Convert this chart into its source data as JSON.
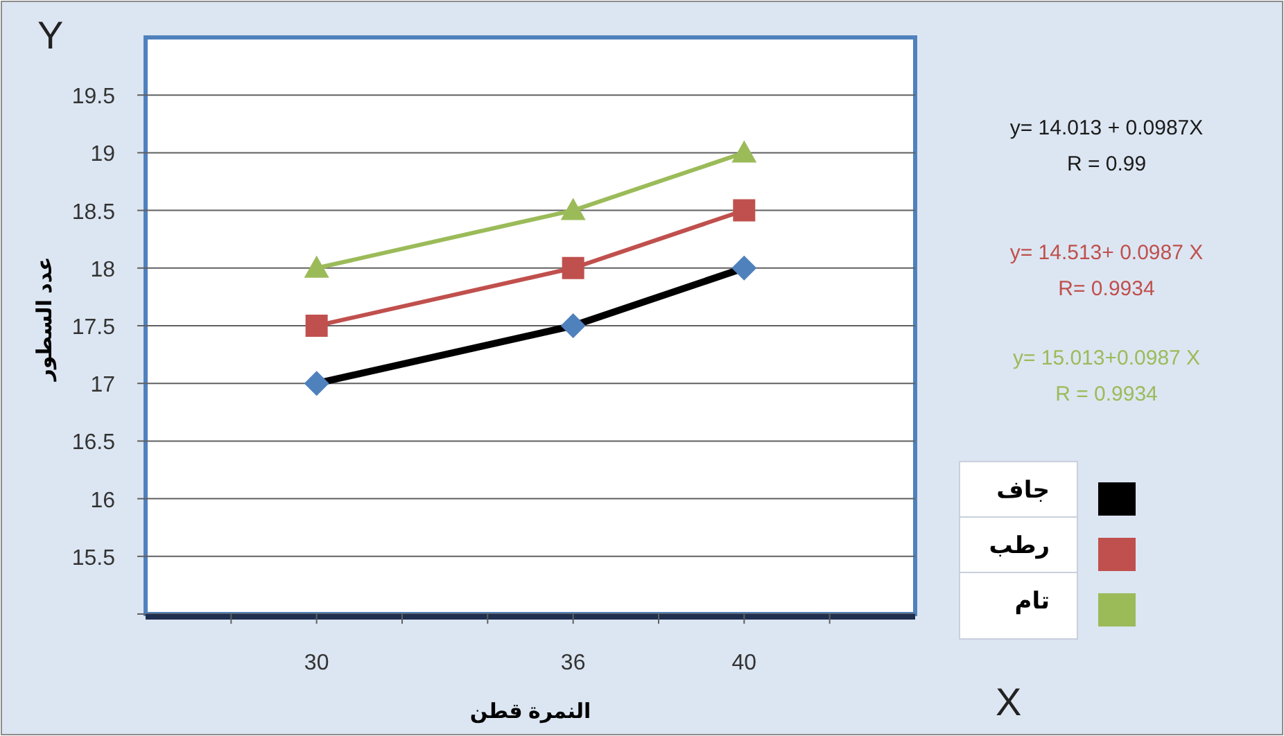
{
  "chart_data": {
    "type": "line",
    "xlabel": "النمرة قطن",
    "ylabel": "عدد السطور",
    "categories": [
      null,
      "30",
      null,
      null,
      "36",
      null,
      "40",
      null
    ],
    "series": [
      {
        "name": "جاف",
        "color": "#000000",
        "marker": "diamond",
        "colors": [
          null,
          "#4f81bd",
          null,
          null,
          "#4f81bd",
          null,
          "#4f81bd",
          null
        ],
        "values": [
          null,
          17,
          null,
          null,
          17.5,
          null,
          18,
          null
        ]
      },
      {
        "name": "رطب",
        "color": "#c0504d",
        "marker": "square",
        "colors": [
          null,
          "#c0504d",
          null,
          null,
          "#c0504d",
          null,
          "#c0504d",
          null
        ],
        "values": [
          null,
          17.5,
          null,
          null,
          18,
          null,
          18.5,
          null
        ]
      },
      {
        "name": "تام",
        "color": "#9bbb59",
        "marker": "triangle",
        "colors": [
          null,
          "#9bbb59",
          null,
          null,
          "#9bbb59",
          null,
          "#9bbb59",
          null
        ],
        "values": [
          null,
          18,
          null,
          null,
          18.5,
          null,
          19,
          null
        ]
      }
    ],
    "ylim": [
      15,
      20
    ],
    "yticks": [
      {
        "value": 15,
        "label": null
      },
      15.5,
      16,
      16.5,
      17,
      17.5,
      18,
      18.5,
      19,
      19.5
    ],
    "grid": "y",
    "legend": "right",
    "annotations": [
      "Y",
      "X",
      "y= 14.013 + 0.0987X",
      "R =  0.99",
      "y= 14.513+ 0.0987 X",
      "R= 0.9934",
      "y= 15.013+0.0987  X",
      "R = 0.9934"
    ]
  }
}
